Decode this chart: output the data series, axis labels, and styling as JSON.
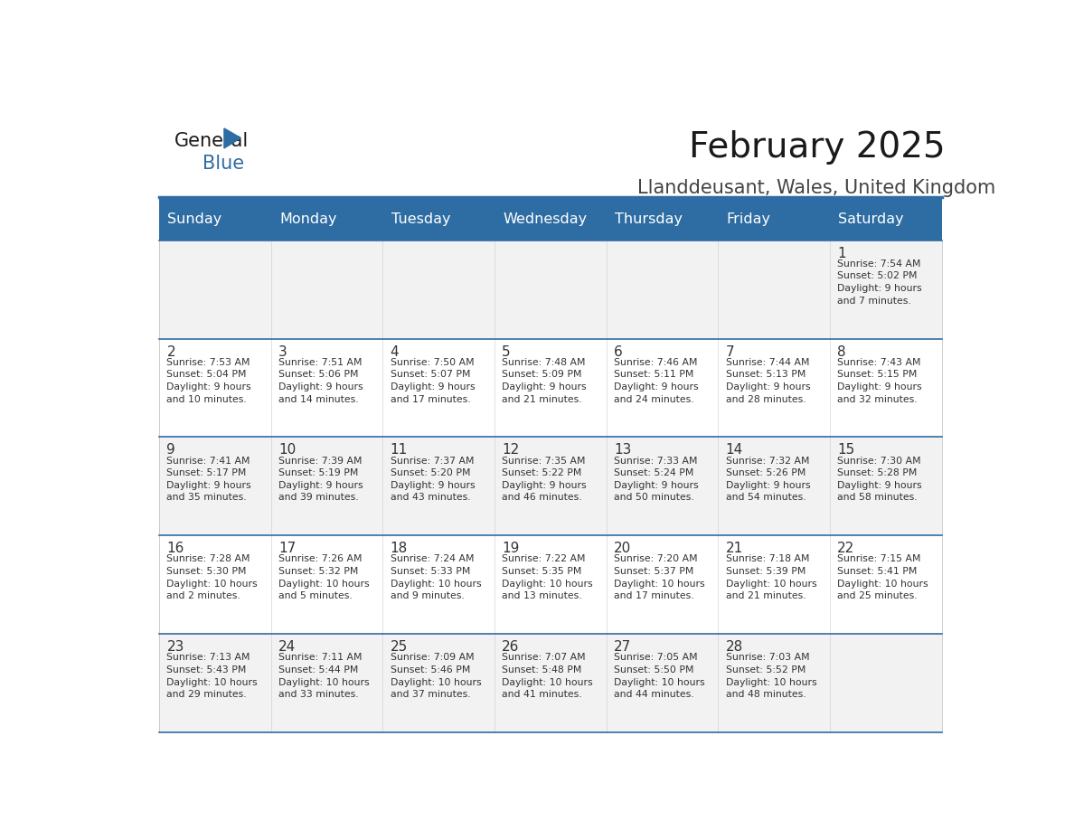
{
  "title": "February 2025",
  "subtitle": "Llanddeusant, Wales, United Kingdom",
  "header_bg": "#2E6DA4",
  "header_text_color": "#FFFFFF",
  "cell_bg_odd": "#F2F2F2",
  "cell_bg_even": "#FFFFFF",
  "border_color": "#2E6DA4",
  "text_color": "#333333",
  "days_of_week": [
    "Sunday",
    "Monday",
    "Tuesday",
    "Wednesday",
    "Thursday",
    "Friday",
    "Saturday"
  ],
  "weeks": [
    [
      {
        "day": "",
        "info": ""
      },
      {
        "day": "",
        "info": ""
      },
      {
        "day": "",
        "info": ""
      },
      {
        "day": "",
        "info": ""
      },
      {
        "day": "",
        "info": ""
      },
      {
        "day": "",
        "info": ""
      },
      {
        "day": "1",
        "info": "Sunrise: 7:54 AM\nSunset: 5:02 PM\nDaylight: 9 hours\nand 7 minutes."
      }
    ],
    [
      {
        "day": "2",
        "info": "Sunrise: 7:53 AM\nSunset: 5:04 PM\nDaylight: 9 hours\nand 10 minutes."
      },
      {
        "day": "3",
        "info": "Sunrise: 7:51 AM\nSunset: 5:06 PM\nDaylight: 9 hours\nand 14 minutes."
      },
      {
        "day": "4",
        "info": "Sunrise: 7:50 AM\nSunset: 5:07 PM\nDaylight: 9 hours\nand 17 minutes."
      },
      {
        "day": "5",
        "info": "Sunrise: 7:48 AM\nSunset: 5:09 PM\nDaylight: 9 hours\nand 21 minutes."
      },
      {
        "day": "6",
        "info": "Sunrise: 7:46 AM\nSunset: 5:11 PM\nDaylight: 9 hours\nand 24 minutes."
      },
      {
        "day": "7",
        "info": "Sunrise: 7:44 AM\nSunset: 5:13 PM\nDaylight: 9 hours\nand 28 minutes."
      },
      {
        "day": "8",
        "info": "Sunrise: 7:43 AM\nSunset: 5:15 PM\nDaylight: 9 hours\nand 32 minutes."
      }
    ],
    [
      {
        "day": "9",
        "info": "Sunrise: 7:41 AM\nSunset: 5:17 PM\nDaylight: 9 hours\nand 35 minutes."
      },
      {
        "day": "10",
        "info": "Sunrise: 7:39 AM\nSunset: 5:19 PM\nDaylight: 9 hours\nand 39 minutes."
      },
      {
        "day": "11",
        "info": "Sunrise: 7:37 AM\nSunset: 5:20 PM\nDaylight: 9 hours\nand 43 minutes."
      },
      {
        "day": "12",
        "info": "Sunrise: 7:35 AM\nSunset: 5:22 PM\nDaylight: 9 hours\nand 46 minutes."
      },
      {
        "day": "13",
        "info": "Sunrise: 7:33 AM\nSunset: 5:24 PM\nDaylight: 9 hours\nand 50 minutes."
      },
      {
        "day": "14",
        "info": "Sunrise: 7:32 AM\nSunset: 5:26 PM\nDaylight: 9 hours\nand 54 minutes."
      },
      {
        "day": "15",
        "info": "Sunrise: 7:30 AM\nSunset: 5:28 PM\nDaylight: 9 hours\nand 58 minutes."
      }
    ],
    [
      {
        "day": "16",
        "info": "Sunrise: 7:28 AM\nSunset: 5:30 PM\nDaylight: 10 hours\nand 2 minutes."
      },
      {
        "day": "17",
        "info": "Sunrise: 7:26 AM\nSunset: 5:32 PM\nDaylight: 10 hours\nand 5 minutes."
      },
      {
        "day": "18",
        "info": "Sunrise: 7:24 AM\nSunset: 5:33 PM\nDaylight: 10 hours\nand 9 minutes."
      },
      {
        "day": "19",
        "info": "Sunrise: 7:22 AM\nSunset: 5:35 PM\nDaylight: 10 hours\nand 13 minutes."
      },
      {
        "day": "20",
        "info": "Sunrise: 7:20 AM\nSunset: 5:37 PM\nDaylight: 10 hours\nand 17 minutes."
      },
      {
        "day": "21",
        "info": "Sunrise: 7:18 AM\nSunset: 5:39 PM\nDaylight: 10 hours\nand 21 minutes."
      },
      {
        "day": "22",
        "info": "Sunrise: 7:15 AM\nSunset: 5:41 PM\nDaylight: 10 hours\nand 25 minutes."
      }
    ],
    [
      {
        "day": "23",
        "info": "Sunrise: 7:13 AM\nSunset: 5:43 PM\nDaylight: 10 hours\nand 29 minutes."
      },
      {
        "day": "24",
        "info": "Sunrise: 7:11 AM\nSunset: 5:44 PM\nDaylight: 10 hours\nand 33 minutes."
      },
      {
        "day": "25",
        "info": "Sunrise: 7:09 AM\nSunset: 5:46 PM\nDaylight: 10 hours\nand 37 minutes."
      },
      {
        "day": "26",
        "info": "Sunrise: 7:07 AM\nSunset: 5:48 PM\nDaylight: 10 hours\nand 41 minutes."
      },
      {
        "day": "27",
        "info": "Sunrise: 7:05 AM\nSunset: 5:50 PM\nDaylight: 10 hours\nand 44 minutes."
      },
      {
        "day": "28",
        "info": "Sunrise: 7:03 AM\nSunset: 5:52 PM\nDaylight: 10 hours\nand 48 minutes."
      },
      {
        "day": "",
        "info": ""
      }
    ]
  ]
}
